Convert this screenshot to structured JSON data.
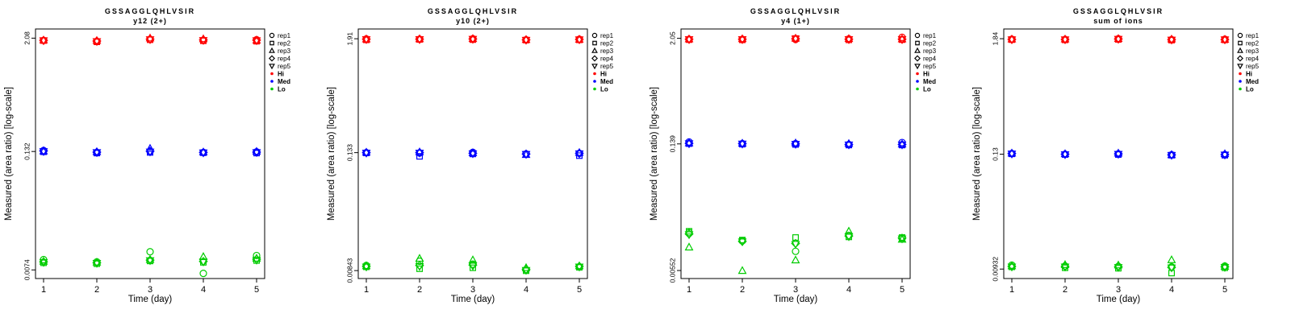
{
  "colors": {
    "hi": "#FF0000",
    "med": "#0000FF",
    "lo": "#00CC00",
    "axis": "#000000"
  },
  "legend": {
    "reps": [
      {
        "label": "rep1",
        "marker": "circle"
      },
      {
        "label": "rep2",
        "marker": "square"
      },
      {
        "label": "rep3",
        "marker": "triangle-up"
      },
      {
        "label": "rep4",
        "marker": "diamond"
      },
      {
        "label": "rep5",
        "marker": "triangle-down"
      }
    ],
    "levels": [
      {
        "label": "Hi",
        "color": "#FF0000"
      },
      {
        "label": "Med",
        "color": "#0000FF"
      },
      {
        "label": "Lo",
        "color": "#00CC00"
      }
    ]
  },
  "chart_data": [
    {
      "type": "scatter",
      "title": "GSSAGGLQHLVSIR",
      "subtitle": "y12 (2+)",
      "xlabel": "Time (day)",
      "ylabel": "Measured (area ratio) [log-scale]",
      "x_ticks": [
        1,
        2,
        3,
        4,
        5
      ],
      "y_scale": "log",
      "ylim": [
        0.006,
        2.6
      ],
      "y_ticks": [
        {
          "value": 2.08,
          "label": "2.08"
        },
        {
          "value": 0.132,
          "label": "0.132"
        },
        {
          "value": 0.0074,
          "label": "0.0074"
        }
      ],
      "series": [
        {
          "name": "Hi",
          "color": "#FF0000",
          "days": [
            1,
            2,
            3,
            4,
            5
          ],
          "rep_values": [
            [
              1.97,
              1.96,
              1.98,
              1.97,
              1.96
            ],
            [
              1.93,
              1.9,
              1.96,
              1.94,
              1.92
            ],
            [
              2.02,
              2.0,
              2.08,
              2.03,
              2.01
            ],
            [
              1.98,
              1.95,
              2.04,
              1.99,
              1.97
            ],
            [
              2.0,
              1.93,
              1.97,
              1.98,
              1.96
            ]
          ]
        },
        {
          "name": "Med",
          "color": "#0000FF",
          "days": [
            1,
            2,
            3,
            4,
            5
          ],
          "rep_values": [
            [
              0.135,
              0.131,
              0.133,
              0.134,
              0.132
            ],
            [
              0.128,
              0.127,
              0.131,
              0.13,
              0.129
            ],
            [
              0.132,
              0.129,
              0.142,
              0.133,
              0.131
            ],
            [
              0.129,
              0.128,
              0.13,
              0.129,
              0.128
            ],
            [
              0.131,
              0.127,
              0.132,
              0.13,
              0.129
            ]
          ]
        },
        {
          "name": "Lo",
          "color": "#00CC00",
          "days": [
            1,
            2,
            3,
            4,
            5
          ],
          "rep_values": [
            [
              0.0095,
              0.0088,
              0.0091,
              0.009,
              0.0089
            ],
            [
              0.009,
              0.0086,
              0.0089,
              0.0088,
              0.0087
            ],
            [
              0.0115,
              0.0092,
              0.0095,
              0.0094,
              0.0093
            ],
            [
              0.0068,
              0.0089,
              0.0102,
              0.0091,
              0.009
            ],
            [
              0.0105,
              0.0093,
              0.0098,
              0.0096,
              0.0094
            ]
          ]
        }
      ]
    },
    {
      "type": "scatter",
      "title": "GSSAGGLQHLVSIR",
      "subtitle": "y10 (2+)",
      "xlabel": "Time (day)",
      "ylabel": "Measured (area ratio) [log-scale]",
      "x_ticks": [
        1,
        2,
        3,
        4,
        5
      ],
      "y_scale": "log",
      "ylim": [
        0.007,
        2.4
      ],
      "y_ticks": [
        {
          "value": 1.91,
          "label": "1.91"
        },
        {
          "value": 0.133,
          "label": "0.133"
        },
        {
          "value": 0.00843,
          "label": "0.00843"
        }
      ],
      "series": [
        {
          "name": "Hi",
          "color": "#FF0000",
          "days": [
            1,
            2,
            3,
            4,
            5
          ],
          "rep_values": [
            [
              1.9,
              1.86,
              1.89,
              1.89,
              1.88
            ],
            [
              1.89,
              1.88,
              1.9,
              1.89,
              1.88
            ],
            [
              1.91,
              1.87,
              1.91,
              1.9,
              1.89
            ],
            [
              1.86,
              1.85,
              1.87,
              1.86,
              1.85
            ],
            [
              1.89,
              1.86,
              1.88,
              1.88,
              1.87
            ]
          ]
        },
        {
          "name": "Med",
          "color": "#0000FF",
          "days": [
            1,
            2,
            3,
            4,
            5
          ],
          "rep_values": [
            [
              0.133,
              0.132,
              0.134,
              0.133,
              0.132
            ],
            [
              0.132,
              0.122,
              0.135,
              0.133,
              0.132
            ],
            [
              0.134,
              0.129,
              0.132,
              0.131,
              0.13
            ],
            [
              0.129,
              0.128,
              0.127,
              0.129,
              0.128
            ],
            [
              0.131,
              0.124,
              0.133,
              0.131,
              0.13
            ]
          ]
        },
        {
          "name": "Lo",
          "color": "#00CC00",
          "days": [
            1,
            2,
            3,
            4,
            5
          ],
          "rep_values": [
            [
              0.0095,
              0.0092,
              0.0094,
              0.0093,
              0.0092
            ],
            [
              0.0105,
              0.0088,
              0.0112,
              0.0095,
              0.0093
            ],
            [
              0.0098,
              0.009,
              0.0108,
              0.0096,
              0.0094
            ],
            [
              0.0086,
              0.0084,
              0.009,
              0.0087,
              0.0085
            ],
            [
              0.0092,
              0.0091,
              0.0094,
              0.0093,
              0.0092
            ]
          ]
        }
      ]
    },
    {
      "type": "scatter",
      "title": "GSSAGGLQHLVSIR",
      "subtitle": "y4 (1+)",
      "xlabel": "Time (day)",
      "ylabel": "Measured (area ratio) [log-scale]",
      "x_ticks": [
        1,
        2,
        3,
        4,
        5
      ],
      "y_scale": "log",
      "ylim": [
        0.0045,
        2.6
      ],
      "y_ticks": [
        {
          "value": 2.05,
          "label": "2.05"
        },
        {
          "value": 0.139,
          "label": "0.139"
        },
        {
          "value": 0.00552,
          "label": "0.00552"
        }
      ],
      "series": [
        {
          "name": "Hi",
          "color": "#FF0000",
          "days": [
            1,
            2,
            3,
            4,
            5
          ],
          "rep_values": [
            [
              2.0,
              1.98,
              2.01,
              2.0,
              1.99
            ],
            [
              2.0,
              1.97,
              2.02,
              2.0,
              1.99
            ],
            [
              1.99,
              2.04,
              2.05,
              2.03,
              2.02
            ],
            [
              2.02,
              1.97,
              2.03,
              2.0,
              1.99
            ],
            [
              2.1,
              1.98,
              2.01,
              2.0,
              1.99
            ]
          ]
        },
        {
          "name": "Med",
          "color": "#0000FF",
          "days": [
            1,
            2,
            3,
            4,
            5
          ],
          "rep_values": [
            [
              0.146,
              0.14,
              0.142,
              0.141,
              0.14
            ],
            [
              0.14,
              0.138,
              0.141,
              0.14,
              0.139
            ],
            [
              0.14,
              0.137,
              0.142,
              0.139,
              0.138
            ],
            [
              0.137,
              0.135,
              0.14,
              0.137,
              0.136
            ],
            [
              0.144,
              0.135,
              0.138,
              0.137,
              0.136
            ]
          ]
        },
        {
          "name": "Lo",
          "color": "#00CC00",
          "days": [
            1,
            2,
            3,
            4,
            5
          ],
          "rep_values": [
            [
              0.0145,
              0.015,
              0.01,
              0.014,
              0.0138
            ],
            [
              0.0118,
              0.012,
              0.0055,
              0.0116,
              0.0115
            ],
            [
              0.009,
              0.0128,
              0.0072,
              0.011,
              0.0108
            ],
            [
              0.0135,
              0.013,
              0.015,
              0.0133,
              0.0131
            ],
            [
              0.0125,
              0.0128,
              0.0122,
              0.0126,
              0.0124
            ]
          ]
        }
      ]
    },
    {
      "type": "scatter",
      "title": "GSSAGGLQHLVSIR",
      "subtitle": "sum of ions",
      "xlabel": "Time (day)",
      "ylabel": "Measured (area ratio) [log-scale]",
      "x_ticks": [
        1,
        2,
        3,
        4,
        5
      ],
      "y_scale": "log",
      "ylim": [
        0.0075,
        2.3
      ],
      "y_ticks": [
        {
          "value": 1.84,
          "label": "1.84"
        },
        {
          "value": 0.13,
          "label": "0.13"
        },
        {
          "value": 0.00932,
          "label": "0.00932"
        }
      ],
      "series": [
        {
          "name": "Hi",
          "color": "#FF0000",
          "days": [
            1,
            2,
            3,
            4,
            5
          ],
          "rep_values": [
            [
              1.82,
              1.8,
              1.82,
              1.81,
              1.8
            ],
            [
              1.81,
              1.79,
              1.82,
              1.81,
              1.8
            ],
            [
              1.84,
              1.81,
              1.84,
              1.83,
              1.82
            ],
            [
              1.8,
              1.78,
              1.82,
              1.8,
              1.79
            ],
            [
              1.82,
              1.79,
              1.81,
              1.8,
              1.8
            ]
          ]
        },
        {
          "name": "Med",
          "color": "#0000FF",
          "days": [
            1,
            2,
            3,
            4,
            5
          ],
          "rep_values": [
            [
              0.132,
              0.131,
              0.133,
              0.132,
              0.131
            ],
            [
              0.13,
              0.129,
              0.131,
              0.13,
              0.129
            ],
            [
              0.131,
              0.129,
              0.133,
              0.131,
              0.13
            ],
            [
              0.128,
              0.127,
              0.128,
              0.128,
              0.127
            ],
            [
              0.129,
              0.127,
              0.131,
              0.129,
              0.128
            ]
          ]
        },
        {
          "name": "Lo",
          "color": "#00CC00",
          "days": [
            1,
            2,
            3,
            4,
            5
          ],
          "rep_values": [
            [
              0.0102,
              0.0098,
              0.01,
              0.0099,
              0.0098
            ],
            [
              0.01,
              0.0096,
              0.0103,
              0.0099,
              0.0098
            ],
            [
              0.0099,
              0.0095,
              0.0102,
              0.0098,
              0.0097
            ],
            [
              0.0098,
              0.0085,
              0.0115,
              0.0097,
              0.0096
            ],
            [
              0.01,
              0.0096,
              0.0099,
              0.0098,
              0.0097
            ]
          ]
        }
      ]
    }
  ]
}
